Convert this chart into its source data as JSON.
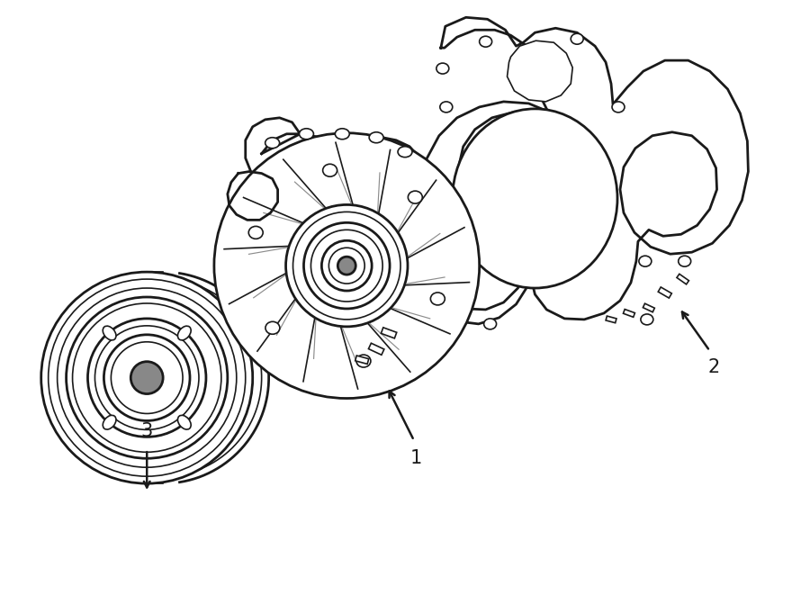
{
  "bg_color": "#ffffff",
  "line_color": "#1a1a1a",
  "lw_main": 2.0,
  "lw_thin": 1.2,
  "fig_width": 9.0,
  "fig_height": 6.61,
  "dpi": 100
}
